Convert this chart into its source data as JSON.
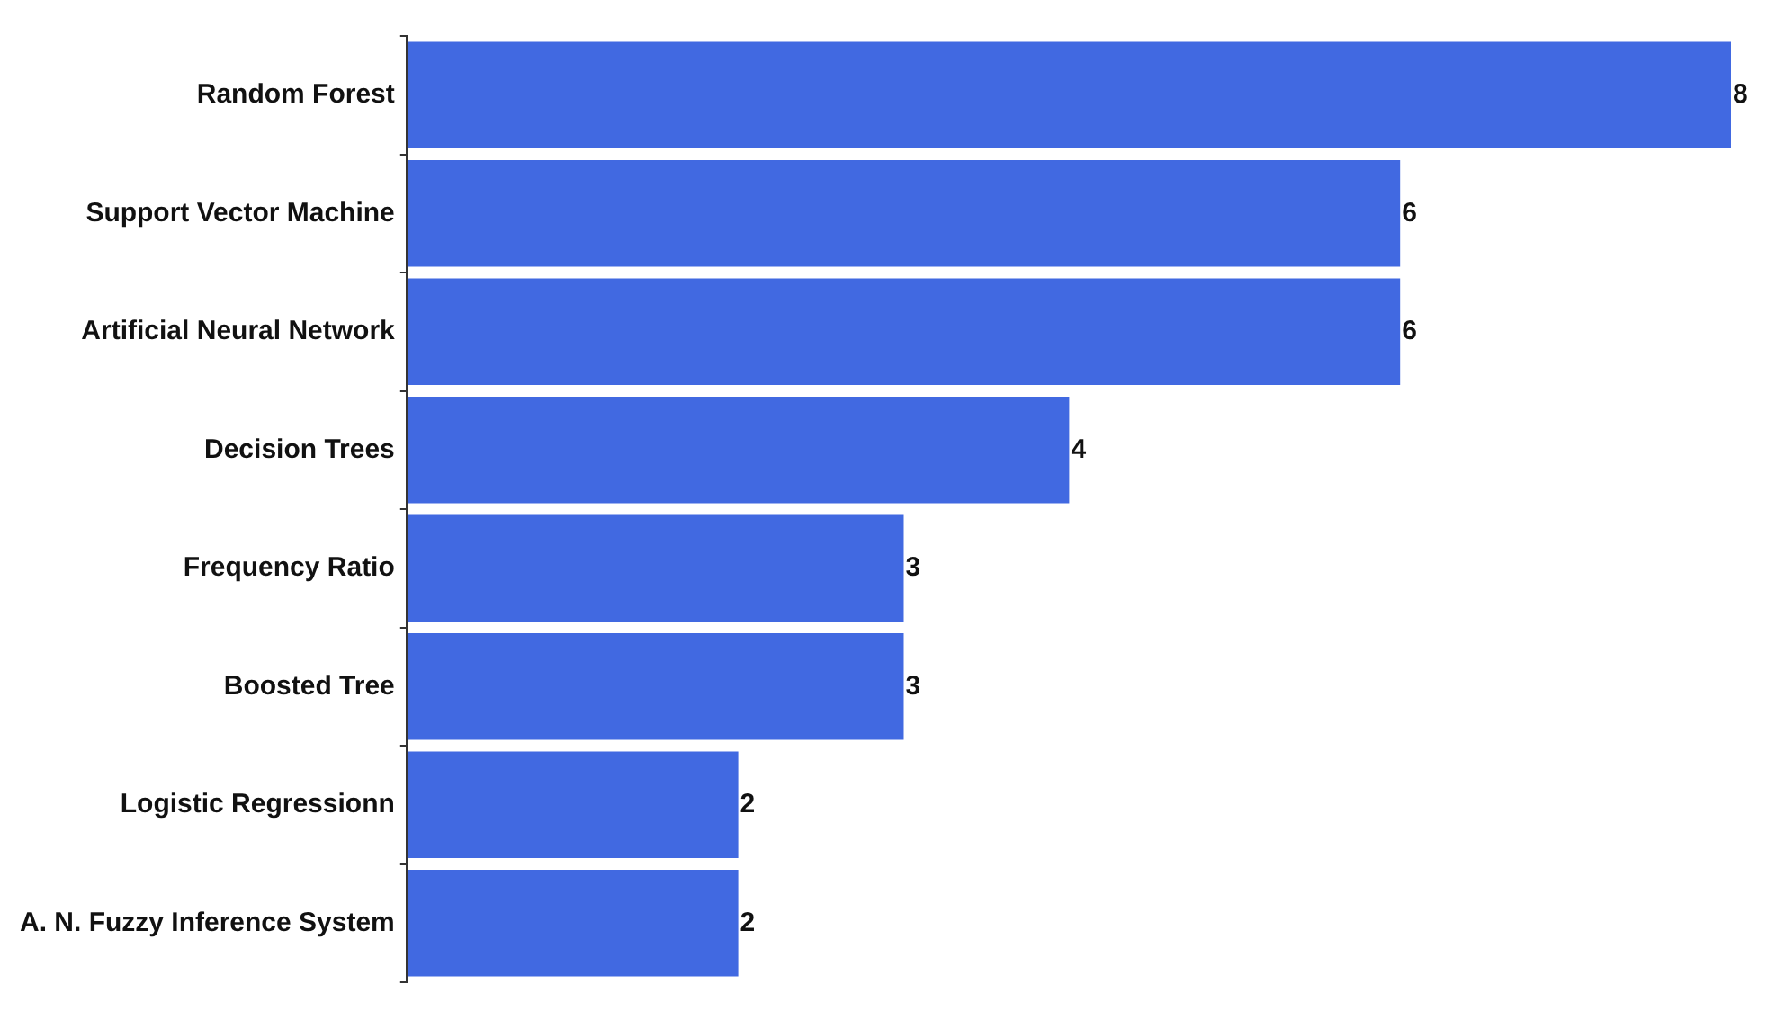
{
  "chart_data": {
    "type": "bar",
    "orientation": "horizontal",
    "categories": [
      "Random Forest",
      "Support Vector Machine",
      "Artificial Neural Network",
      "Decision Trees",
      "Frequency Ratio",
      "Boosted Tree",
      "Logistic Regressionn",
      "A. N. Fuzzy Inference System"
    ],
    "values": [
      8,
      6,
      6,
      4,
      3,
      3,
      2,
      2
    ],
    "color": "#4169e1",
    "data_labels": true,
    "grid": false,
    "legend": false,
    "tick_labels": "y"
  }
}
